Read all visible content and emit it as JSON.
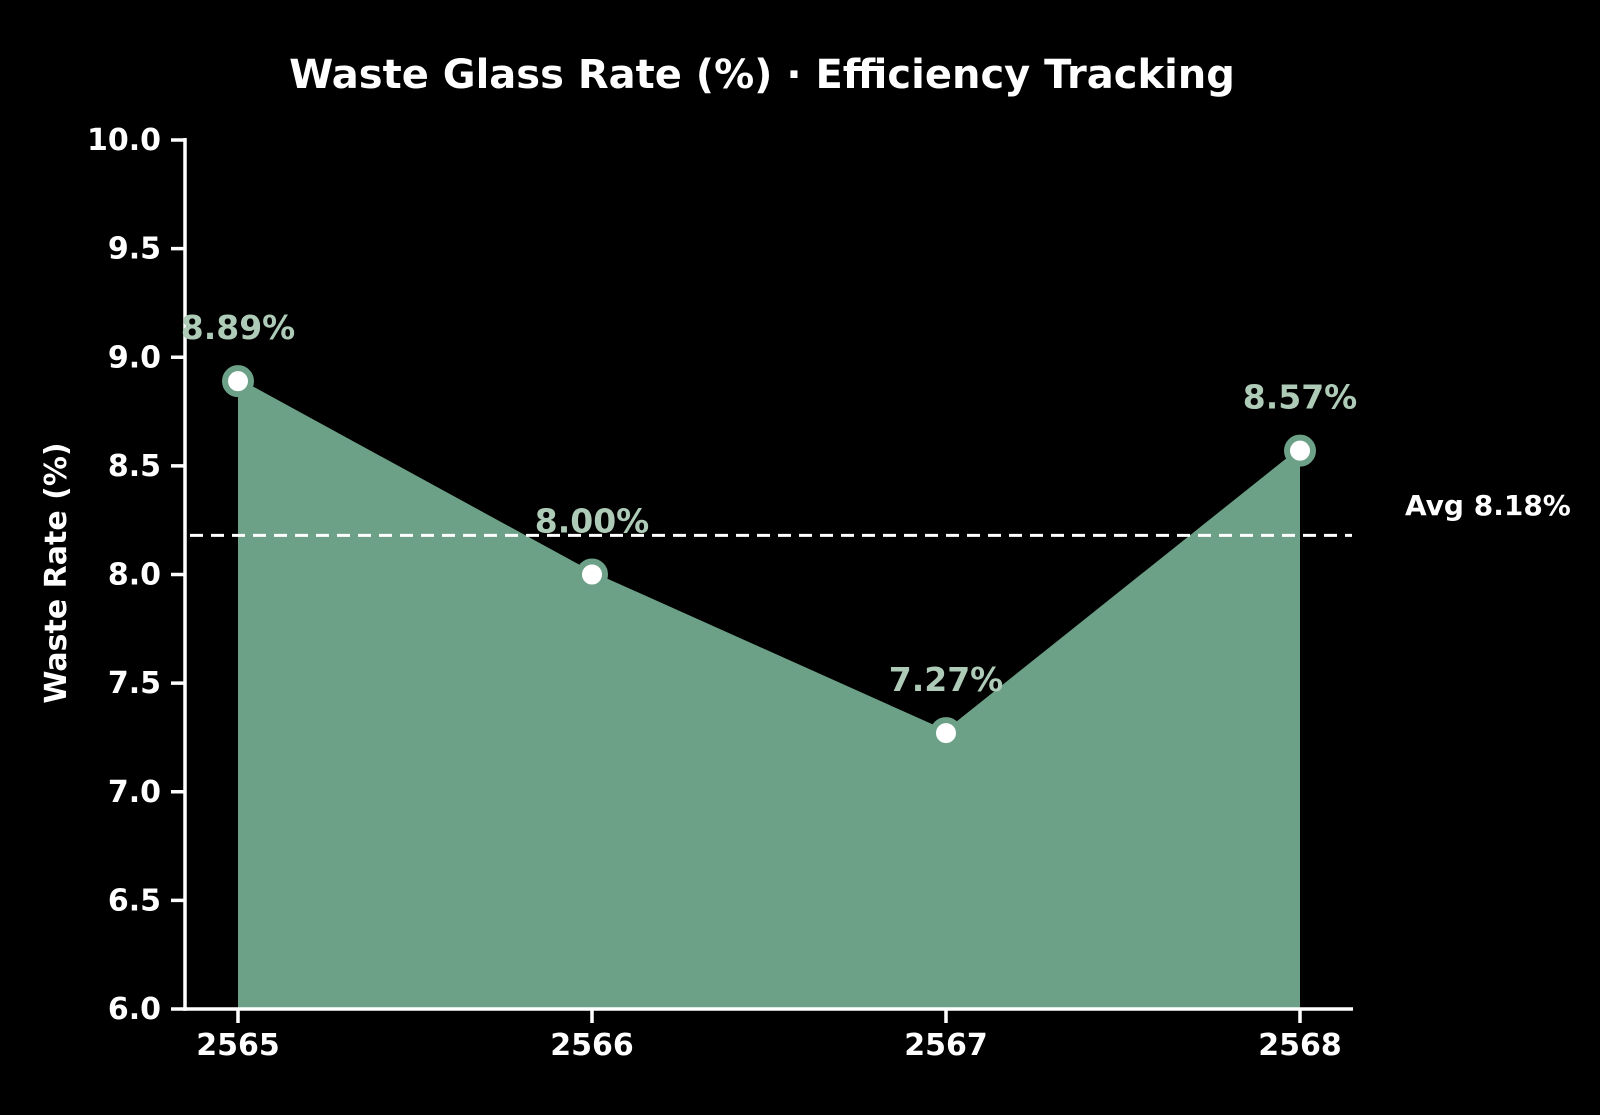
{
  "chart_data": {
    "type": "area",
    "title": "Waste Glass Rate (%) · Efficiency Tracking",
    "ylabel": "Waste Rate (%)",
    "xlabel": "",
    "categories": [
      "2565",
      "2566",
      "2567",
      "2568"
    ],
    "series": [
      {
        "name": "Waste Glass Rate",
        "values": [
          8.89,
          8.0,
          7.27,
          8.57
        ]
      }
    ],
    "point_labels": [
      "8.89%",
      "8.00%",
      "7.27%",
      "8.57%"
    ],
    "ylim": [
      6.0,
      10.0
    ],
    "ytick_labels": [
      "6.0",
      "6.5",
      "7.0",
      "7.5",
      "8.0",
      "8.5",
      "9.0",
      "9.5",
      "10.0"
    ],
    "average": 8.18,
    "average_label": "Avg 8.18%",
    "grid": false,
    "legend": "none",
    "colors": {
      "background": "#000000",
      "area": "#6ca188",
      "line": "#6ca188",
      "marker_fill": "#ffffff",
      "marker_edge": "#6ca188",
      "point_label": "#aecbb8",
      "axis": "#ffffff",
      "tick_label": "#ffffff",
      "avg_line": "#ffffff",
      "avg_label": "#ffffff",
      "title": "#ffffff"
    }
  }
}
